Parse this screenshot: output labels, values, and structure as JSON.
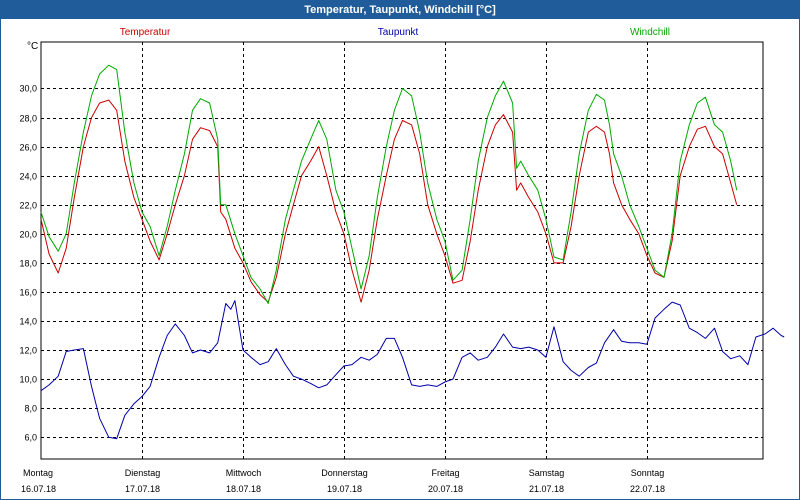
{
  "window": {
    "title": "Temperatur, Taupunkt, Windchill [°C]"
  },
  "legend": [
    {
      "label": "Temperatur",
      "color": "#cc0000"
    },
    {
      "label": "Taupunkt",
      "color": "#0000aa"
    },
    {
      "label": "Windchill",
      "color": "#00aa00"
    }
  ],
  "axes": {
    "y_unit": "°C"
  },
  "chart_data": {
    "type": "line",
    "title": "Temperatur, Taupunkt, Windchill [°C]",
    "ylabel": "°C",
    "xlabel": "",
    "ylim": [
      4.5,
      33.2
    ],
    "xlim": [
      0,
      7.15
    ],
    "grid": true,
    "y_ticks": [
      "6,0",
      "8,0",
      "10,0",
      "12,0",
      "14,0",
      "16,0",
      "18,0",
      "20,0",
      "22,0",
      "24,0",
      "26,0",
      "28,0",
      "30,0"
    ],
    "y_tick_values": [
      6,
      8,
      10,
      12,
      14,
      16,
      18,
      20,
      22,
      24,
      26,
      28,
      30
    ],
    "x_ticks": [
      {
        "day": "Montag",
        "date": "16.07.18",
        "x": 0
      },
      {
        "day": "Dienstag",
        "date": "17.07.18",
        "x": 1
      },
      {
        "day": "Mittwoch",
        "date": "18.07.18",
        "x": 2
      },
      {
        "day": "Donnerstag",
        "date": "19.07.18",
        "x": 3
      },
      {
        "day": "Freitag",
        "date": "20.07.18",
        "x": 4
      },
      {
        "day": "Samstag",
        "date": "21.07.18",
        "x": 5
      },
      {
        "day": "Sonntag",
        "date": "22.07.18",
        "x": 6
      }
    ],
    "series": [
      {
        "name": "Temperatur",
        "color": "#cc0000",
        "points": [
          [
            0.0,
            21.0
          ],
          [
            0.08,
            18.6
          ],
          [
            0.17,
            17.3
          ],
          [
            0.25,
            19.0
          ],
          [
            0.33,
            22.5
          ],
          [
            0.42,
            26.0
          ],
          [
            0.5,
            28.0
          ],
          [
            0.58,
            29.0
          ],
          [
            0.67,
            29.2
          ],
          [
            0.75,
            28.5
          ],
          [
            0.83,
            25.0
          ],
          [
            0.92,
            22.5
          ],
          [
            1.0,
            21.0
          ],
          [
            1.08,
            19.5
          ],
          [
            1.17,
            18.2
          ],
          [
            1.25,
            20.0
          ],
          [
            1.33,
            22.0
          ],
          [
            1.42,
            24.0
          ],
          [
            1.5,
            26.5
          ],
          [
            1.58,
            27.3
          ],
          [
            1.67,
            27.1
          ],
          [
            1.75,
            26.0
          ],
          [
            1.78,
            21.5
          ],
          [
            1.83,
            21.0
          ],
          [
            1.92,
            19.0
          ],
          [
            2.0,
            18.0
          ],
          [
            2.08,
            16.7
          ],
          [
            2.17,
            15.8
          ],
          [
            2.25,
            15.3
          ],
          [
            2.33,
            17.0
          ],
          [
            2.42,
            20.0
          ],
          [
            2.5,
            22.0
          ],
          [
            2.58,
            24.0
          ],
          [
            2.67,
            25.0
          ],
          [
            2.75,
            26.0
          ],
          [
            2.83,
            24.0
          ],
          [
            2.92,
            21.5
          ],
          [
            3.0,
            20.0
          ],
          [
            3.08,
            17.5
          ],
          [
            3.17,
            15.3
          ],
          [
            3.25,
            17.5
          ],
          [
            3.33,
            21.0
          ],
          [
            3.42,
            24.0
          ],
          [
            3.5,
            26.5
          ],
          [
            3.58,
            27.8
          ],
          [
            3.67,
            27.5
          ],
          [
            3.75,
            25.5
          ],
          [
            3.83,
            22.0
          ],
          [
            3.92,
            20.0
          ],
          [
            4.0,
            18.5
          ],
          [
            4.08,
            16.6
          ],
          [
            4.17,
            16.8
          ],
          [
            4.25,
            19.5
          ],
          [
            4.33,
            23.0
          ],
          [
            4.42,
            26.0
          ],
          [
            4.5,
            27.5
          ],
          [
            4.58,
            28.2
          ],
          [
            4.67,
            27.0
          ],
          [
            4.71,
            23.0
          ],
          [
            4.75,
            23.5
          ],
          [
            4.83,
            22.5
          ],
          [
            4.92,
            21.5
          ],
          [
            5.0,
            20.0
          ],
          [
            5.08,
            18.0
          ],
          [
            5.17,
            18.0
          ],
          [
            5.25,
            20.5
          ],
          [
            5.33,
            24.0
          ],
          [
            5.42,
            27.0
          ],
          [
            5.5,
            27.4
          ],
          [
            5.58,
            27.0
          ],
          [
            5.63,
            25.5
          ],
          [
            5.67,
            23.5
          ],
          [
            5.75,
            22.0
          ],
          [
            5.83,
            21.0
          ],
          [
            5.92,
            20.0
          ],
          [
            6.0,
            18.5
          ],
          [
            6.08,
            17.3
          ],
          [
            6.17,
            17.0
          ],
          [
            6.25,
            19.5
          ],
          [
            6.33,
            24.0
          ],
          [
            6.42,
            26.0
          ],
          [
            6.5,
            27.2
          ],
          [
            6.58,
            27.4
          ],
          [
            6.67,
            26.0
          ],
          [
            6.75,
            25.5
          ],
          [
            6.83,
            23.5
          ],
          [
            6.89,
            22.0
          ]
        ]
      },
      {
        "name": "Taupunkt",
        "color": "#0000aa",
        "points": [
          [
            0.0,
            9.2
          ],
          [
            0.08,
            9.6
          ],
          [
            0.17,
            10.2
          ],
          [
            0.25,
            11.9
          ],
          [
            0.33,
            12.0
          ],
          [
            0.42,
            12.1
          ],
          [
            0.5,
            9.5
          ],
          [
            0.58,
            7.3
          ],
          [
            0.67,
            6.0
          ],
          [
            0.75,
            5.9
          ],
          [
            0.83,
            7.5
          ],
          [
            0.92,
            8.3
          ],
          [
            1.0,
            8.8
          ],
          [
            1.08,
            9.5
          ],
          [
            1.17,
            11.5
          ],
          [
            1.25,
            13.0
          ],
          [
            1.33,
            13.8
          ],
          [
            1.42,
            13.0
          ],
          [
            1.5,
            11.8
          ],
          [
            1.58,
            12.0
          ],
          [
            1.67,
            11.8
          ],
          [
            1.75,
            12.5
          ],
          [
            1.83,
            15.2
          ],
          [
            1.88,
            14.8
          ],
          [
            1.92,
            15.4
          ],
          [
            2.0,
            12.0
          ],
          [
            2.08,
            11.5
          ],
          [
            2.17,
            11.0
          ],
          [
            2.25,
            11.2
          ],
          [
            2.33,
            12.1
          ],
          [
            2.42,
            11.0
          ],
          [
            2.5,
            10.2
          ],
          [
            2.58,
            10.0
          ],
          [
            2.67,
            9.7
          ],
          [
            2.75,
            9.4
          ],
          [
            2.83,
            9.6
          ],
          [
            2.92,
            10.3
          ],
          [
            3.0,
            10.9
          ],
          [
            3.08,
            11.0
          ],
          [
            3.17,
            11.5
          ],
          [
            3.25,
            11.3
          ],
          [
            3.33,
            11.7
          ],
          [
            3.42,
            12.8
          ],
          [
            3.5,
            12.8
          ],
          [
            3.58,
            11.5
          ],
          [
            3.67,
            9.6
          ],
          [
            3.75,
            9.5
          ],
          [
            3.83,
            9.6
          ],
          [
            3.92,
            9.5
          ],
          [
            4.0,
            9.8
          ],
          [
            4.08,
            10.0
          ],
          [
            4.17,
            11.5
          ],
          [
            4.25,
            11.8
          ],
          [
            4.33,
            11.3
          ],
          [
            4.42,
            11.5
          ],
          [
            4.5,
            12.2
          ],
          [
            4.58,
            13.1
          ],
          [
            4.67,
            12.2
          ],
          [
            4.75,
            12.1
          ],
          [
            4.83,
            12.2
          ],
          [
            4.92,
            12.0
          ],
          [
            5.0,
            11.5
          ],
          [
            5.08,
            13.6
          ],
          [
            5.17,
            11.2
          ],
          [
            5.25,
            10.6
          ],
          [
            5.33,
            10.2
          ],
          [
            5.42,
            10.8
          ],
          [
            5.5,
            11.1
          ],
          [
            5.58,
            12.5
          ],
          [
            5.67,
            13.4
          ],
          [
            5.75,
            12.6
          ],
          [
            5.83,
            12.5
          ],
          [
            5.92,
            12.5
          ],
          [
            6.0,
            12.4
          ],
          [
            6.08,
            14.2
          ],
          [
            6.17,
            14.8
          ],
          [
            6.25,
            15.3
          ],
          [
            6.33,
            15.1
          ],
          [
            6.42,
            13.5
          ],
          [
            6.5,
            13.2
          ],
          [
            6.58,
            12.8
          ],
          [
            6.67,
            13.5
          ],
          [
            6.75,
            11.9
          ],
          [
            6.83,
            11.4
          ],
          [
            6.92,
            11.6
          ],
          [
            7.0,
            11.0
          ],
          [
            7.08,
            12.9
          ],
          [
            7.17,
            13.1
          ],
          [
            7.25,
            13.5
          ],
          [
            7.33,
            13.0
          ],
          [
            7.36,
            12.9
          ]
        ]
      },
      {
        "name": "Windchill",
        "color": "#00aa00",
        "points": [
          [
            0.0,
            21.5
          ],
          [
            0.08,
            19.8
          ],
          [
            0.17,
            18.8
          ],
          [
            0.25,
            20.0
          ],
          [
            0.33,
            23.5
          ],
          [
            0.42,
            27.0
          ],
          [
            0.5,
            29.5
          ],
          [
            0.58,
            31.0
          ],
          [
            0.67,
            31.6
          ],
          [
            0.75,
            31.3
          ],
          [
            0.83,
            27.0
          ],
          [
            0.92,
            23.5
          ],
          [
            1.0,
            21.5
          ],
          [
            1.08,
            20.5
          ],
          [
            1.17,
            18.5
          ],
          [
            1.25,
            20.5
          ],
          [
            1.33,
            23.0
          ],
          [
            1.42,
            25.5
          ],
          [
            1.5,
            28.5
          ],
          [
            1.58,
            29.3
          ],
          [
            1.67,
            29.0
          ],
          [
            1.75,
            26.5
          ],
          [
            1.78,
            22.0
          ],
          [
            1.83,
            22.0
          ],
          [
            1.92,
            20.0
          ],
          [
            2.0,
            18.5
          ],
          [
            2.08,
            17.0
          ],
          [
            2.17,
            16.2
          ],
          [
            2.25,
            15.2
          ],
          [
            2.33,
            17.5
          ],
          [
            2.42,
            21.0
          ],
          [
            2.5,
            23.0
          ],
          [
            2.58,
            25.0
          ],
          [
            2.67,
            26.5
          ],
          [
            2.75,
            27.8
          ],
          [
            2.83,
            26.5
          ],
          [
            2.92,
            23.0
          ],
          [
            3.0,
            21.5
          ],
          [
            3.08,
            19.0
          ],
          [
            3.17,
            16.2
          ],
          [
            3.25,
            18.5
          ],
          [
            3.33,
            22.5
          ],
          [
            3.42,
            26.0
          ],
          [
            3.5,
            28.5
          ],
          [
            3.58,
            30.0
          ],
          [
            3.67,
            29.5
          ],
          [
            3.75,
            27.0
          ],
          [
            3.83,
            23.5
          ],
          [
            3.92,
            21.0
          ],
          [
            4.0,
            19.5
          ],
          [
            4.08,
            16.8
          ],
          [
            4.17,
            17.5
          ],
          [
            4.25,
            21.0
          ],
          [
            4.33,
            25.0
          ],
          [
            4.42,
            28.0
          ],
          [
            4.5,
            29.5
          ],
          [
            4.58,
            30.5
          ],
          [
            4.67,
            29.0
          ],
          [
            4.71,
            24.5
          ],
          [
            4.75,
            25.0
          ],
          [
            4.83,
            24.0
          ],
          [
            4.92,
            23.0
          ],
          [
            5.0,
            21.0
          ],
          [
            5.08,
            18.4
          ],
          [
            5.17,
            18.2
          ],
          [
            5.25,
            21.5
          ],
          [
            5.33,
            25.5
          ],
          [
            5.42,
            28.5
          ],
          [
            5.5,
            29.6
          ],
          [
            5.58,
            29.2
          ],
          [
            5.63,
            27.5
          ],
          [
            5.67,
            25.5
          ],
          [
            5.75,
            24.0
          ],
          [
            5.83,
            22.0
          ],
          [
            5.92,
            20.5
          ],
          [
            6.0,
            19.0
          ],
          [
            6.08,
            17.5
          ],
          [
            6.17,
            17.0
          ],
          [
            6.25,
            20.0
          ],
          [
            6.33,
            25.0
          ],
          [
            6.42,
            27.5
          ],
          [
            6.5,
            29.0
          ],
          [
            6.58,
            29.4
          ],
          [
            6.67,
            27.5
          ],
          [
            6.75,
            27.0
          ],
          [
            6.83,
            25.0
          ],
          [
            6.89,
            23.0
          ]
        ]
      }
    ]
  }
}
